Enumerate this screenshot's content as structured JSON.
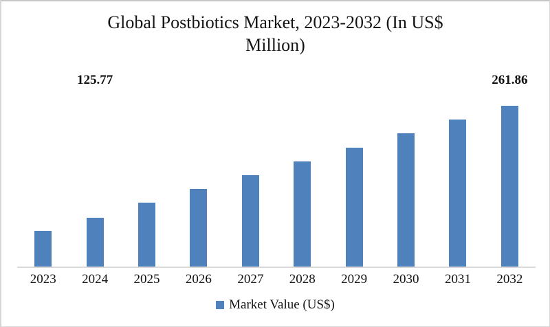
{
  "header": {
    "title_line1": "Global Postbiotics Market, 2023-2032 (In US$",
    "title_line2": "Million)"
  },
  "legend": {
    "label": "Market Value (US$)"
  },
  "chart_data": {
    "type": "bar",
    "title": "Global Postbiotics Market, 2023-2032 (In US$ Million)",
    "categories": [
      "2023",
      "2024",
      "2025",
      "2026",
      "2027",
      "2028",
      "2029",
      "2030",
      "2031",
      "2032"
    ],
    "series": [
      {
        "name": "Market Value (US$)",
        "values": [
          109.7,
          125.77,
          143.9,
          161.0,
          177.6,
          193.8,
          210.5,
          228.3,
          245.3,
          261.86
        ]
      }
    ],
    "data_labels_shown": {
      "2024": "125.77",
      "2032": "261.86"
    },
    "bar_color": "#4f81bd",
    "axis_line_color": "#d9d9d9",
    "ylim": [
      66.5,
      280
    ],
    "y_axis_visible": false,
    "gridlines": false,
    "legend_position": "bottom"
  }
}
